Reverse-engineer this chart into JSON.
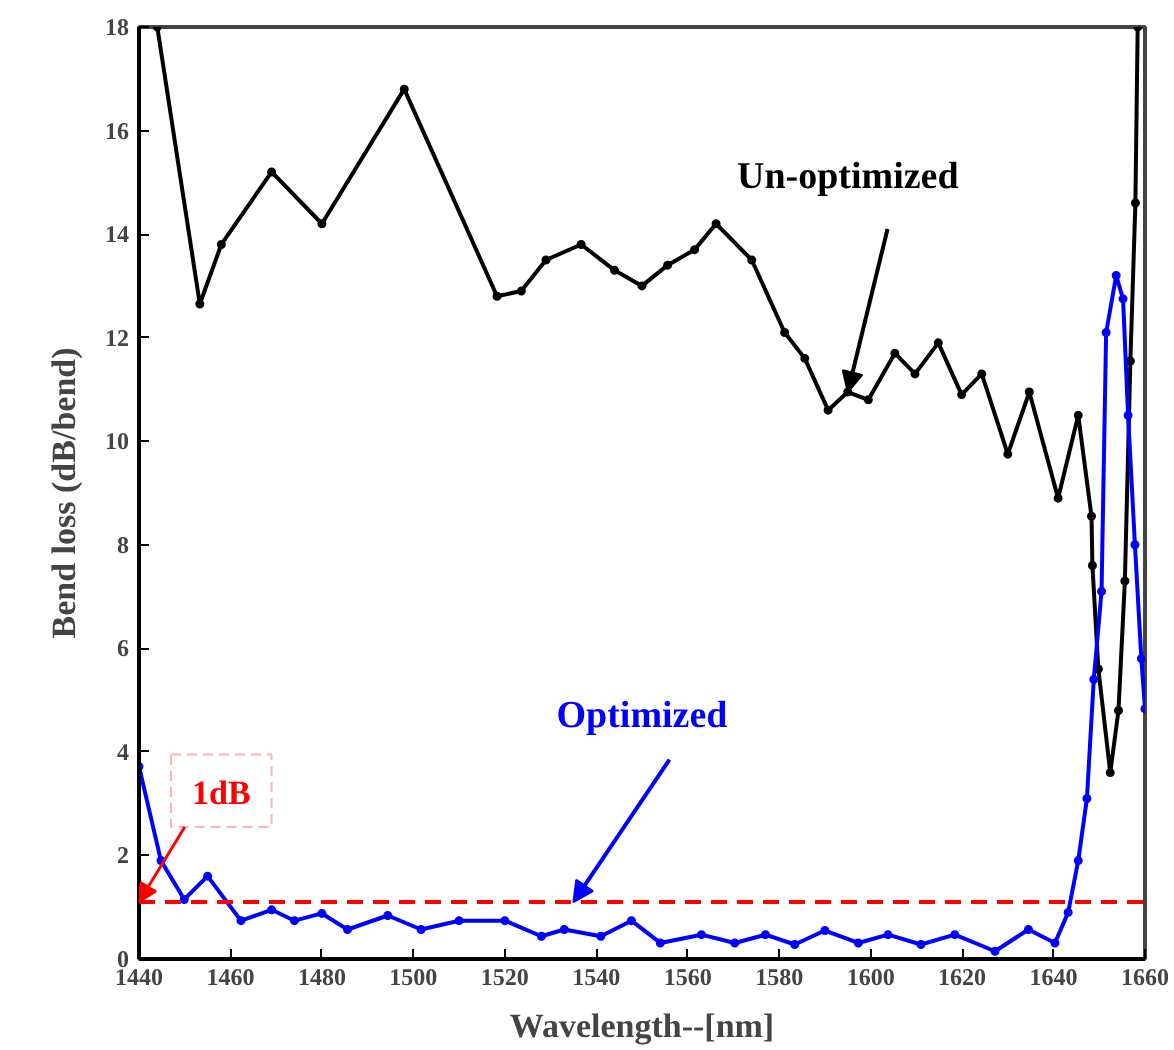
{
  "chart_data": {
    "type": "line",
    "xlabel": "Wavelength--[nm]",
    "ylabel": "Bend loss (dB/bend)",
    "xlim": [
      1440,
      1660
    ],
    "xticks": [
      1440,
      1460,
      1480,
      1500,
      1520,
      1540,
      1560,
      1580,
      1600,
      1620,
      1640,
      1660
    ],
    "ylim": [
      0,
      18
    ],
    "yticks": [
      0,
      2,
      4,
      6,
      8,
      10,
      12,
      14,
      16,
      18
    ],
    "grid": false,
    "marker": "circle",
    "line_style": "solid",
    "series": [
      {
        "color": "#000000",
        "x": [
          1444,
          1453.3,
          1458,
          1469,
          1480,
          1498,
          1518.3,
          1523.6,
          1529,
          1536.7,
          1544,
          1550,
          1555.6,
          1561.5,
          1566.2,
          1574,
          1581.2,
          1585.6,
          1590.7,
          1595,
          1599.5,
          1605.3,
          1609.7,
          1614.8,
          1619.9,
          1624.3,
          1630,
          1634.7,
          1641,
          1645.4,
          1648.3,
          1648.5,
          1649.8,
          1652.4,
          1654.2,
          1655.6,
          1656.8,
          1657.9,
          1658.4
        ],
        "values": [
          18,
          12.65,
          13.8,
          15.2,
          14.2,
          16.8,
          12.8,
          12.9,
          13.5,
          13.8,
          13.3,
          13.0,
          13.4,
          13.7,
          14.2,
          13.5,
          12.1,
          11.6,
          10.6,
          10.95,
          10.8,
          11.7,
          11.3,
          11.9,
          10.9,
          11.3,
          9.75,
          10.95,
          8.9,
          10.5,
          8.55,
          7.6,
          5.6,
          3.6,
          4.8,
          7.3,
          11.55,
          14.6,
          18
        ]
      },
      {
        "color": "#0000ff",
        "x": [
          1440,
          1444.8,
          1449.9,
          1455,
          1462.3,
          1469,
          1474,
          1480,
          1485.6,
          1494.4,
          1501.7,
          1510,
          1520,
          1528,
          1533,
          1541,
          1547.7,
          1554,
          1563,
          1570.3,
          1577,
          1583.4,
          1590,
          1597.3,
          1603.8,
          1611,
          1618.4,
          1627.2,
          1634.5,
          1640.3,
          1643.2,
          1645.4,
          1647.3,
          1648.8,
          1650.5,
          1651.5,
          1653.7,
          1655.2,
          1656.3,
          1657.8,
          1659.2,
          1660
        ],
        "values": [
          3.72,
          1.9,
          1.15,
          1.6,
          0.74,
          0.95,
          0.74,
          0.88,
          0.57,
          0.84,
          0.57,
          0.74,
          0.74,
          0.44,
          0.57,
          0.44,
          0.74,
          0.31,
          0.47,
          0.31,
          0.47,
          0.28,
          0.55,
          0.31,
          0.47,
          0.28,
          0.47,
          0.15,
          0.57,
          0.31,
          0.9,
          1.9,
          3.1,
          5.4,
          7.1,
          12.1,
          13.2,
          12.75,
          10.5,
          8.0,
          5.8,
          4.83
        ]
      }
    ],
    "ref_lines": [
      {
        "axis": "y",
        "value": 1.1,
        "label": "1dB",
        "color": "#ff0000",
        "line_style": "dashed"
      }
    ],
    "annotations": [
      {
        "text": "Un-optimized",
        "x": 1595,
        "y": 10.95
      },
      {
        "text": "Optimized",
        "x": 1535,
        "y": 1.1
      }
    ]
  }
}
